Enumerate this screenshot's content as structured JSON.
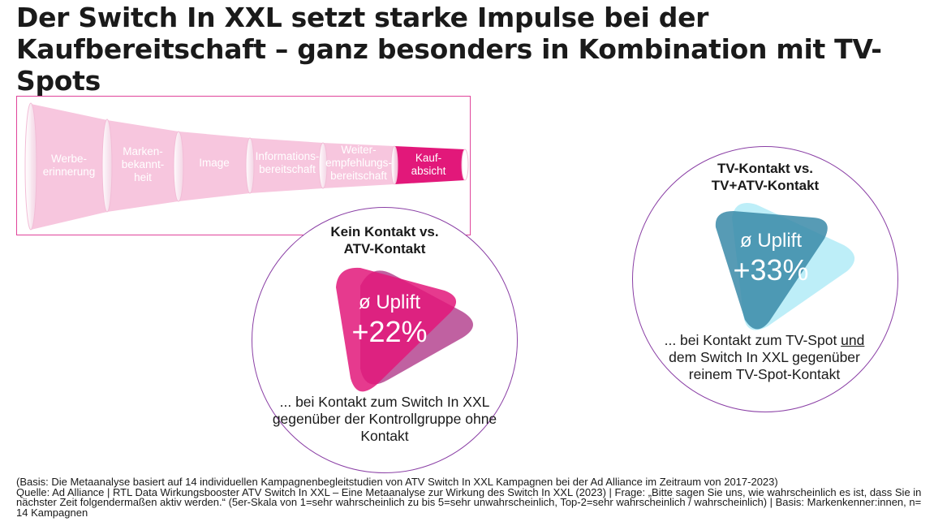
{
  "title": "Der Switch In XXL setzt starke Impulse bei der Kaufbereitschaft – ganz besonders in Kombination mit TV-Spots",
  "colors": {
    "funnel_light": "#f7c6de",
    "funnel_active": "#e2187a",
    "circle_border": "#8a3fa5",
    "magenta": "#e2187a",
    "purple": "#b0398a",
    "teal_dark": "#3a8aa8",
    "teal_light": "#b6ecf7"
  },
  "funnel": {
    "stages": [
      {
        "label": "Werbe-\nerinnerung",
        "active": false
      },
      {
        "label": "Marken-\nbekannt-\nheit",
        "active": false
      },
      {
        "label": "Image",
        "active": false
      },
      {
        "label": "Informations-\nbereitschaft",
        "active": false
      },
      {
        "label": "Weiter-\nempfehlungs-\nbereitschaft",
        "active": false
      },
      {
        "label": "Kauf-\nabsicht",
        "active": true
      }
    ]
  },
  "circles": [
    {
      "heading": "Kein Kontakt vs.\nATV-Kontakt",
      "uplift_label": "ø Uplift",
      "uplift_value": "+22%",
      "description_pre": "... bei Kontakt zum Switch In XXL gegenüber der Kontrollgruppe ohne Kontakt",
      "description_underlined": "",
      "description_post": "",
      "icon": "play-triangle-magenta-icon"
    },
    {
      "heading": "TV-Kontakt vs.\nTV+ATV-Kontakt",
      "uplift_label": "ø Uplift",
      "uplift_value": "+33%",
      "description_pre": "... bei Kontakt zum TV-Spot ",
      "description_underlined": "und",
      "description_post": " dem Switch In XXL gegenüber reinem TV-Spot-Kontakt",
      "icon": "play-triangle-teal-icon"
    }
  ],
  "footer": {
    "basis": "(Basis: Die Metaanalyse basiert auf 14 individuellen Kampagnenbegleitstudien von ATV Switch In XXL Kampagnen bei der Ad Alliance im Zeitraum von 2017-2023)",
    "source": "Quelle: Ad Alliance | RTL Data Wirkungsbooster ATV Switch In XXL – Eine Metaanalyse zur Wirkung des Switch In XXL (2023) | Frage: „Bitte sagen Sie uns, wie wahrscheinlich es ist, dass Sie in nächster Zeit folgendermaßen aktiv werden.“ (5er-Skala von 1=sehr wahrscheinlich zu bis 5=sehr unwahrscheinlich, Top-2=sehr wahrscheinlich / wahrscheinlich) | Basis: Markenkenner:innen, n= 14 Kampagnen"
  }
}
